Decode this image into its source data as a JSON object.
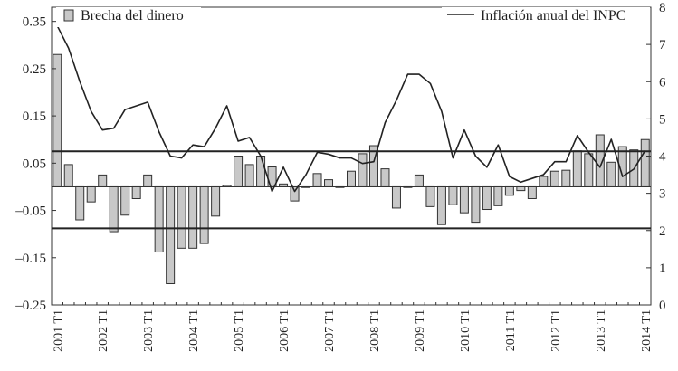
{
  "chart_data": {
    "type": "bar+line",
    "title": "",
    "x_categories": [
      "2001 T1",
      "2001 T2",
      "2001 T3",
      "2001 T4",
      "2002 T1",
      "2002 T2",
      "2002 T3",
      "2002 T4",
      "2003 T1",
      "2003 T2",
      "2003 T3",
      "2003 T4",
      "2004 T1",
      "2004 T2",
      "2004 T3",
      "2004 T4",
      "2005 T1",
      "2005 T2",
      "2005 T3",
      "2005 T4",
      "2006 T1",
      "2006 T2",
      "2006 T3",
      "2006 T4",
      "2007 T1",
      "2007 T2",
      "2007 T3",
      "2007 T4",
      "2008 T1",
      "2008 T2",
      "2008 T3",
      "2008 T4",
      "2009 T1",
      "2009 T2",
      "2009 T3",
      "2009 T4",
      "2010 T1",
      "2010 T2",
      "2010 T3",
      "2010 T4",
      "2011 T1",
      "2011 T2",
      "2011 T3",
      "2011 T4",
      "2012 T1",
      "2012 T2",
      "2012 T3",
      "2012 T4",
      "2013 T1",
      "2013 T2",
      "2013 T3",
      "2013 T4",
      "2014 T1"
    ],
    "x_tick_labels": [
      "2001 T1",
      "2002 T1",
      "2003 T1",
      "2004 T1",
      "2005 T1",
      "2006 T1",
      "2007 T1",
      "2008 T1",
      "2009 T1",
      "2010 T1",
      "2011 T1",
      "2012 T1",
      "2013 T1",
      "2014 T1"
    ],
    "left_axis": {
      "range": [
        -0.25,
        0.38
      ],
      "tick_values": [
        0.35,
        0.25,
        0.15,
        0.05,
        -0.05,
        -0.15,
        -0.25
      ],
      "tick_labels": [
        "0.35",
        "0.25",
        "0.15",
        "0.05",
        "–0.05",
        "–0.15",
        "–0.25"
      ]
    },
    "right_axis": {
      "range": [
        0,
        8
      ],
      "tick_values": [
        8,
        7,
        6,
        5,
        4,
        3,
        2,
        1,
        0
      ],
      "tick_labels": [
        "8",
        "7",
        "6",
        "5",
        "4",
        "3",
        "2",
        "1",
        "0"
      ]
    },
    "reference_lines_left": [
      0.075,
      -0.088
    ],
    "series": [
      {
        "name": "Brecha del dinero",
        "type": "bar",
        "axis": "left",
        "values": [
          0.28,
          0.047,
          -0.07,
          -0.032,
          0.025,
          -0.095,
          -0.06,
          -0.025,
          0.025,
          -0.138,
          -0.205,
          -0.13,
          -0.13,
          -0.12,
          -0.062,
          0.003,
          0.065,
          0.047,
          0.065,
          0.042,
          0.006,
          -0.03,
          0.0,
          0.028,
          0.015,
          0.0,
          0.033,
          0.07,
          0.087,
          0.038,
          -0.045,
          0.0,
          0.025,
          -0.042,
          -0.08,
          -0.038,
          -0.055,
          -0.075,
          -0.048,
          -0.04,
          -0.018,
          -0.008,
          -0.025,
          0.022,
          0.033,
          0.035,
          0.076,
          0.07,
          0.11,
          0.052,
          0.085,
          0.078,
          0.1
        ]
      },
      {
        "name": "Inflación anual del INPC",
        "type": "line",
        "axis": "right",
        "values": [
          7.5,
          6.9,
          6.0,
          5.2,
          4.7,
          4.75,
          5.25,
          5.35,
          5.45,
          4.65,
          4.0,
          3.95,
          4.3,
          4.25,
          4.75,
          5.35,
          4.4,
          4.5,
          4.0,
          3.05,
          3.7,
          3.05,
          3.5,
          4.1,
          4.05,
          3.95,
          3.95,
          3.8,
          3.85,
          4.9,
          5.5,
          6.2,
          6.2,
          5.95,
          5.2,
          3.95,
          4.7,
          4.0,
          3.7,
          4.3,
          3.45,
          3.3,
          3.4,
          3.5,
          3.85,
          3.85,
          4.55,
          4.1,
          3.7,
          4.45,
          3.45,
          3.65,
          4.15
        ]
      }
    ],
    "legend": [
      {
        "label": "Brecha del dinero",
        "marker": "bar",
        "placement": "top-left"
      },
      {
        "label": "Inflación anual del INPC",
        "marker": "line",
        "placement": "top-right"
      }
    ]
  }
}
